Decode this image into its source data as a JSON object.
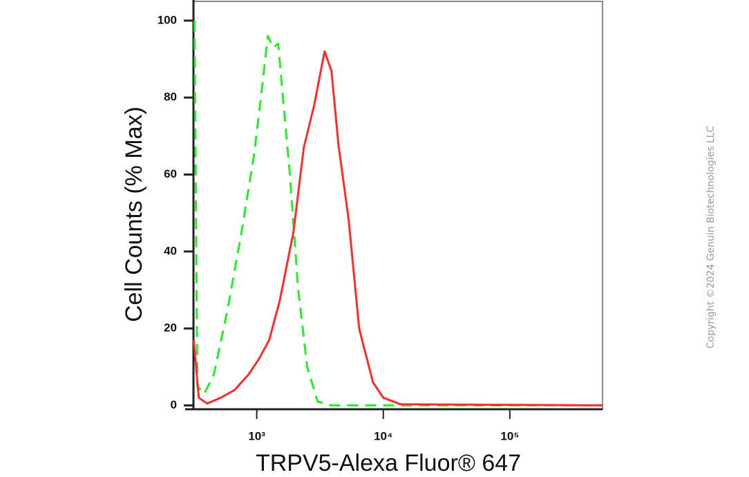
{
  "chart_data": {
    "type": "line",
    "x_label": "TRPV5-Alexa Fluor® 647",
    "y_label": "Cell Counts (% Max)",
    "copyright": "Copyright ©2024 Genuin Biotechnologies LLC",
    "log_x": true,
    "xlim": [
      316,
      540000
    ],
    "ylim": [
      -1,
      105
    ],
    "xticks": [
      {
        "value": 1000,
        "label": "10³"
      },
      {
        "value": 10000,
        "label": "10⁴"
      },
      {
        "value": 100000,
        "label": "10⁵"
      }
    ],
    "yticks": [
      0,
      20,
      40,
      60,
      80,
      100
    ],
    "series": [
      {
        "color": "#22ee22",
        "dashed": true,
        "x": [
          322,
          339,
          385,
          458,
          589,
          758,
          951,
          1080,
          1223,
          1353,
          1477,
          1613,
          1828,
          2127,
          2506,
          3027,
          3890,
          540000
        ],
        "values": [
          100,
          5,
          3,
          8,
          25,
          45,
          65,
          80,
          96,
          93,
          94,
          80,
          60,
          30,
          10,
          1,
          0,
          0
        ]
      },
      {
        "color": "#ff2a2a",
        "dashed": false,
        "x": [
          318,
          348,
          405,
          520,
          668,
          860,
          1038,
          1254,
          1514,
          1948,
          2355,
          2844,
          3435,
          3890,
          4415,
          5333,
          6442,
          8285,
          10000,
          13700,
          540000
        ],
        "values": [
          17,
          2,
          0.5,
          2,
          4,
          8,
          12,
          17,
          27,
          45,
          67,
          78,
          92,
          87,
          68,
          48,
          20,
          6,
          2,
          0.3,
          0
        ]
      }
    ]
  }
}
